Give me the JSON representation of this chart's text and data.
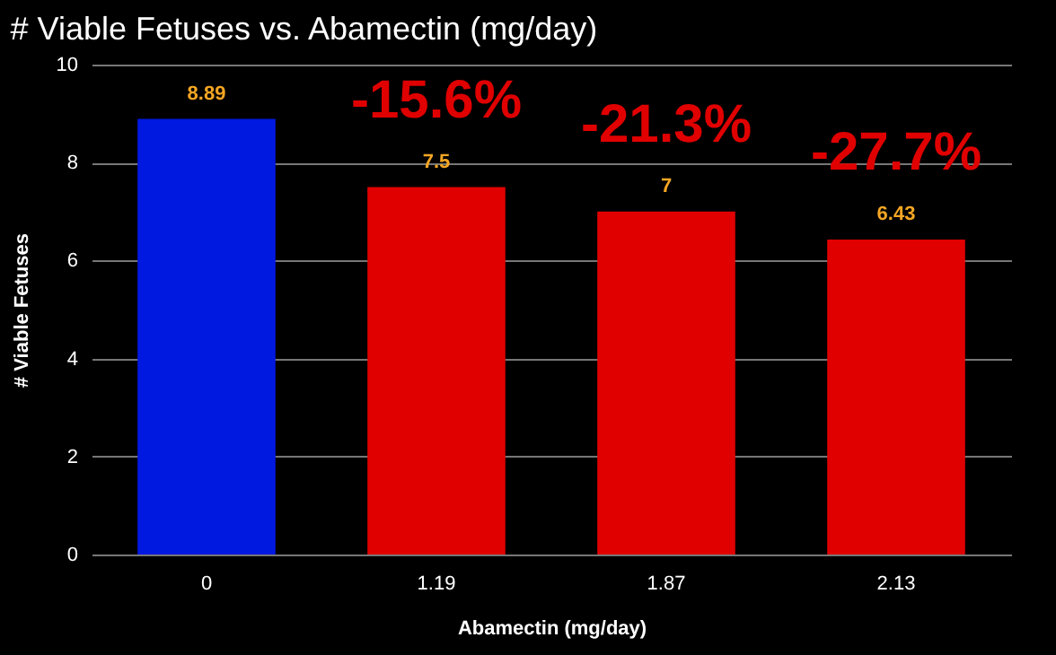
{
  "chart_data": {
    "type": "bar",
    "title": "# Viable Fetuses vs. Abamectin (mg/day)",
    "xlabel": "Abamectin (mg/day)",
    "ylabel": "# Viable Fetuses",
    "categories": [
      "0",
      "1.19",
      "1.87",
      "2.13"
    ],
    "values": [
      8.89,
      7.5,
      7,
      6.43
    ],
    "colors": [
      "#0019e0",
      "#e00000",
      "#e00000",
      "#e00000"
    ],
    "data_labels": true,
    "ylim": [
      0,
      10
    ],
    "yticks": [
      0,
      2,
      4,
      6,
      8,
      10
    ],
    "grid": "y",
    "annotations": [
      "-15.6%",
      "-21.3%",
      "-27.7%"
    ]
  }
}
